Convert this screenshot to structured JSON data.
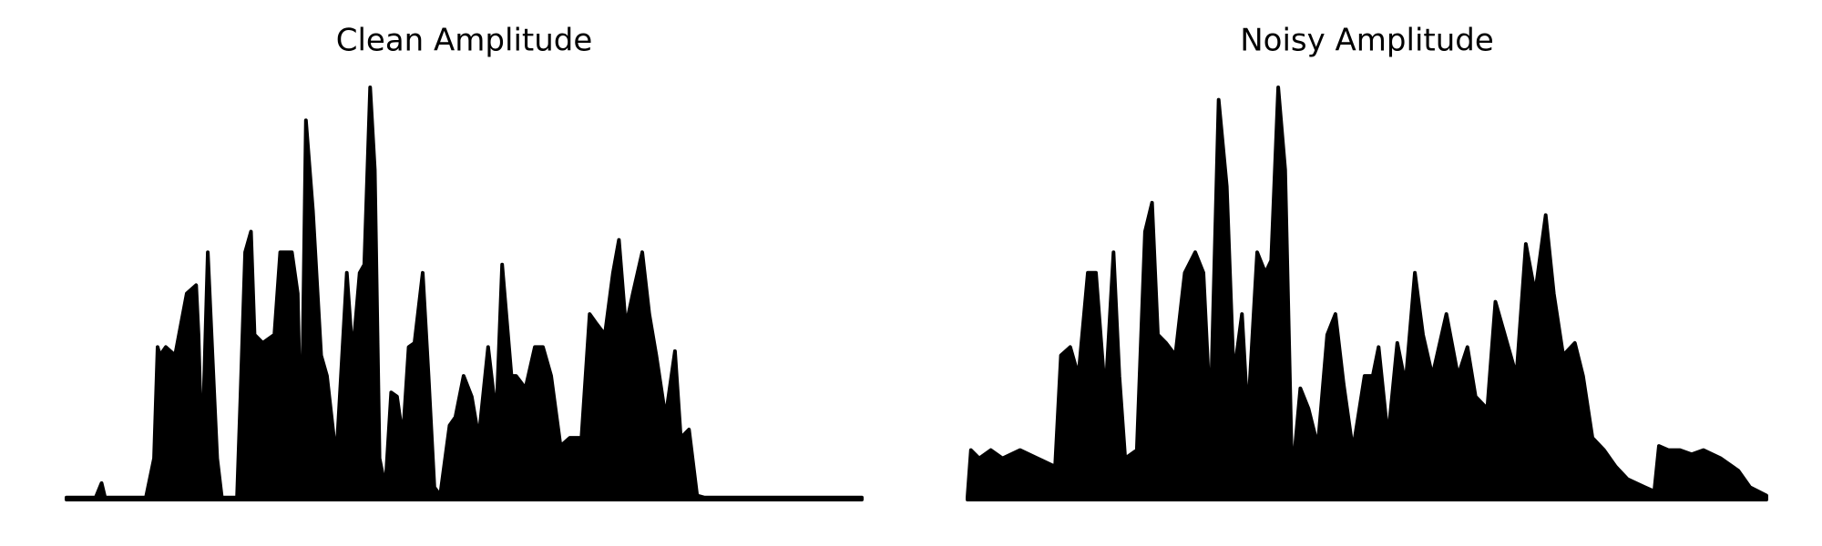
{
  "chart_data": [
    {
      "type": "area",
      "title": "Clean Amplitude",
      "color": "#000000",
      "xlim": [
        0,
        681
      ],
      "ylim": [
        0,
        1
      ],
      "x": [
        0,
        25,
        30,
        33,
        68,
        75,
        78,
        80,
        85,
        93,
        103,
        111,
        113,
        116,
        121,
        125,
        129,
        133,
        146,
        149,
        153,
        158,
        161,
        168,
        178,
        183,
        188,
        193,
        198,
        201,
        205,
        211,
        218,
        223,
        231,
        235,
        240,
        245,
        251,
        255,
        260,
        264,
        268,
        273,
        278,
        283,
        288,
        293,
        298,
        305,
        310,
        315,
        320,
        328,
        333,
        340,
        347,
        353,
        361,
        368,
        373,
        381,
        385,
        393,
        401,
        408,
        415,
        423,
        431,
        441,
        448,
        453,
        461,
        468,
        473,
        479,
        485,
        493,
        499,
        505,
        513,
        521,
        526,
        533,
        540,
        546,
        553,
        560,
        681
      ],
      "values": [
        0.005,
        0.005,
        0.04,
        0.005,
        0.005,
        0.1,
        0.37,
        0.35,
        0.37,
        0.35,
        0.5,
        0.52,
        0.4,
        0.1,
        0.6,
        0.35,
        0.1,
        0.005,
        0.005,
        0.25,
        0.6,
        0.65,
        0.4,
        0.38,
        0.4,
        0.6,
        0.6,
        0.6,
        0.5,
        0.1,
        0.92,
        0.7,
        0.35,
        0.3,
        0.1,
        0.3,
        0.55,
        0.35,
        0.55,
        0.57,
        1.0,
        0.8,
        0.1,
        0.03,
        0.26,
        0.25,
        0.15,
        0.37,
        0.38,
        0.55,
        0.3,
        0.03,
        0.01,
        0.18,
        0.2,
        0.3,
        0.25,
        0.15,
        0.37,
        0.2,
        0.57,
        0.3,
        0.3,
        0.27,
        0.37,
        0.37,
        0.3,
        0.13,
        0.15,
        0.15,
        0.45,
        0.43,
        0.4,
        0.55,
        0.63,
        0.42,
        0.5,
        0.6,
        0.45,
        0.35,
        0.2,
        0.36,
        0.15,
        0.17,
        0.01,
        0.005,
        0.005,
        0.005,
        0.005
      ]
    },
    {
      "type": "area",
      "title": "Noisy Amplitude",
      "color": "#000000",
      "xlim": [
        0,
        684
      ],
      "ylim": [
        0,
        1
      ],
      "x": [
        0,
        3,
        10,
        20,
        30,
        45,
        60,
        75,
        80,
        88,
        95,
        103,
        110,
        118,
        125,
        130,
        135,
        145,
        152,
        158,
        163,
        170,
        178,
        186,
        195,
        202,
        208,
        215,
        222,
        228,
        235,
        240,
        248,
        255,
        260,
        266,
        272,
        278,
        285,
        292,
        300,
        308,
        315,
        322,
        330,
        340,
        347,
        352,
        360,
        368,
        375,
        383,
        390,
        398,
        410,
        420,
        428,
        435,
        445,
        452,
        460,
        470,
        478,
        486,
        495,
        502,
        510,
        520,
        527,
        535,
        545,
        555,
        565,
        580,
        588,
        592,
        600,
        610,
        620,
        630,
        645,
        660,
        670,
        684
      ],
      "values": [
        0.005,
        0.12,
        0.1,
        0.12,
        0.1,
        0.12,
        0.1,
        0.08,
        0.35,
        0.37,
        0.3,
        0.55,
        0.55,
        0.25,
        0.6,
        0.3,
        0.1,
        0.12,
        0.65,
        0.72,
        0.4,
        0.38,
        0.35,
        0.55,
        0.6,
        0.55,
        0.2,
        0.97,
        0.76,
        0.3,
        0.45,
        0.2,
        0.6,
        0.55,
        0.58,
        1.0,
        0.8,
        0.05,
        0.27,
        0.22,
        0.13,
        0.4,
        0.45,
        0.28,
        0.12,
        0.3,
        0.3,
        0.37,
        0.15,
        0.38,
        0.28,
        0.55,
        0.4,
        0.3,
        0.45,
        0.3,
        0.37,
        0.25,
        0.22,
        0.48,
        0.4,
        0.3,
        0.62,
        0.5,
        0.69,
        0.5,
        0.35,
        0.38,
        0.3,
        0.15,
        0.12,
        0.08,
        0.05,
        0.03,
        0.02,
        0.13,
        0.12,
        0.12,
        0.11,
        0.12,
        0.1,
        0.07,
        0.03,
        0.01
      ]
    }
  ]
}
